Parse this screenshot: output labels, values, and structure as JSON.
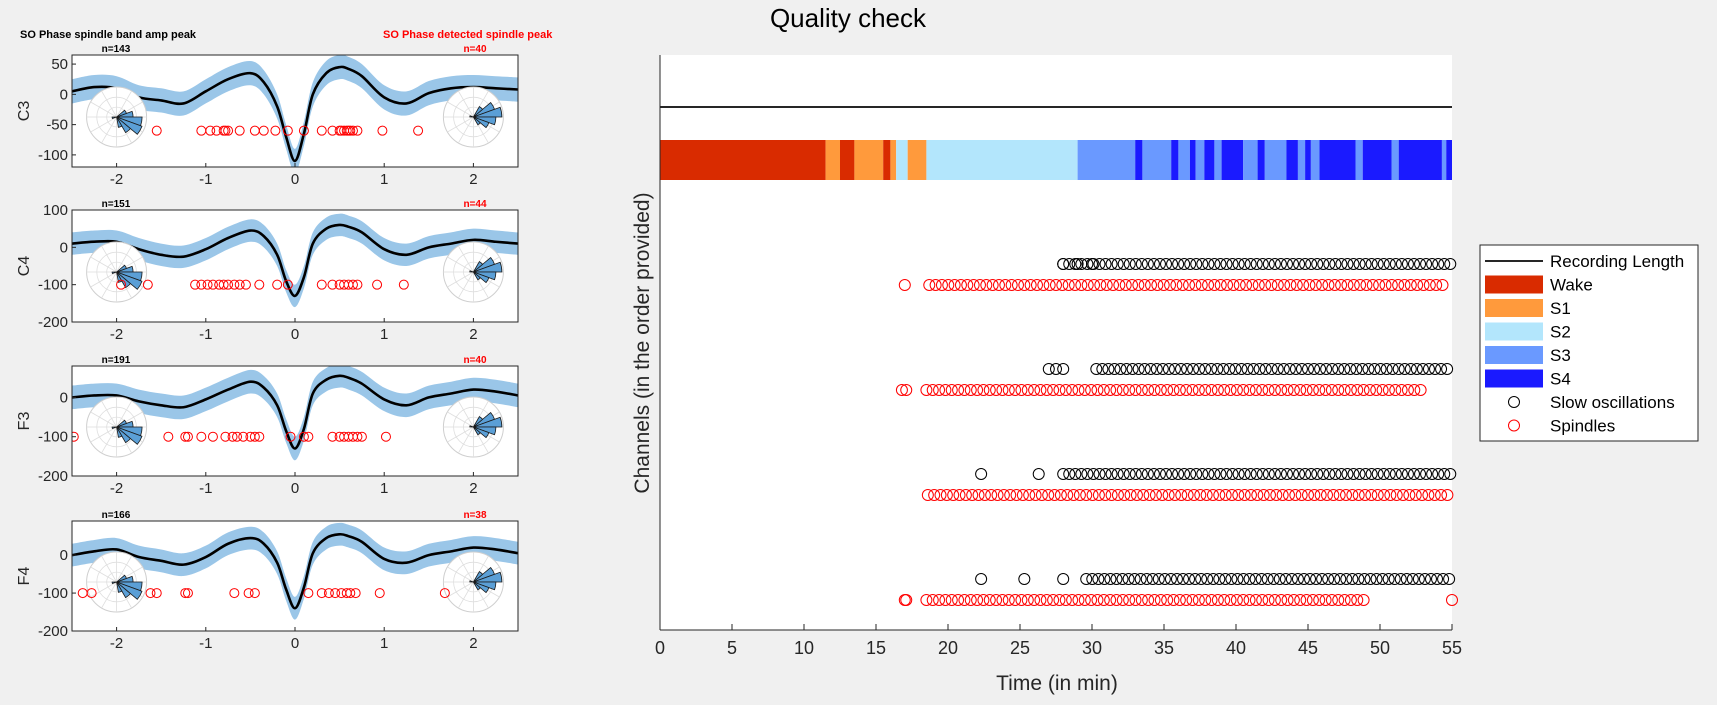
{
  "left_headers": {
    "spindle_band": "SO Phase spindle band amp peak",
    "detected_spindle": "SO Phase detected spindle peak"
  },
  "colors": {
    "band": "#9ac6e8",
    "mean_line": "#000000",
    "spindle_marker": "#ff0000",
    "so_marker": "#000000",
    "rose_fill": "#5b9fd6"
  },
  "chart_data": [
    {
      "type": "line",
      "title": "",
      "ylabel": "C3",
      "n_left": "n=143",
      "n_right": "n=40",
      "xlim": [
        -2.5,
        2.5
      ],
      "ylim": [
        -120,
        65
      ],
      "yticks": [
        50,
        0,
        -50,
        -100
      ],
      "xticks": [
        -2,
        -1,
        0,
        1,
        2
      ],
      "x": [
        -2.5,
        -2.25,
        -2,
        -1.75,
        -1.5,
        -1.25,
        -1,
        -0.75,
        -0.5,
        -0.35,
        -0.2,
        -0.1,
        0,
        0.1,
        0.2,
        0.35,
        0.5,
        0.6,
        0.75,
        1,
        1.25,
        1.5,
        1.75,
        2,
        2.25,
        2.5
      ],
      "mean": [
        5,
        12,
        10,
        -5,
        -10,
        -15,
        5,
        25,
        35,
        20,
        -20,
        -70,
        -110,
        -65,
        0,
        35,
        45,
        42,
        30,
        -5,
        -15,
        2,
        10,
        12,
        10,
        8
      ],
      "band_half_width": 20,
      "spindle_dots_x": [
        -1.55,
        -1.05,
        -0.95,
        -0.88,
        -0.8,
        -0.78,
        -0.75,
        -0.62,
        -0.45,
        -0.35,
        -0.22,
        -0.08,
        0.1,
        0.3,
        0.42,
        0.5,
        0.52,
        0.55,
        0.58,
        0.6,
        0.62,
        0.65,
        0.7,
        0.98,
        1.38
      ],
      "spindle_dots_y": -60
    },
    {
      "type": "line",
      "title": "",
      "ylabel": "C4",
      "n_left": "n=151",
      "n_right": "n=44",
      "xlim": [
        -2.5,
        2.5
      ],
      "ylim": [
        -200,
        100
      ],
      "yticks": [
        100,
        0,
        -100,
        -200
      ],
      "xticks": [
        -2,
        -1,
        0,
        1,
        2
      ],
      "x": [
        -2.5,
        -2.25,
        -2,
        -1.75,
        -1.5,
        -1.25,
        -1,
        -0.75,
        -0.5,
        -0.35,
        -0.2,
        -0.1,
        0,
        0.1,
        0.2,
        0.35,
        0.5,
        0.6,
        0.75,
        1,
        1.25,
        1.5,
        1.75,
        2,
        2.25,
        2.5
      ],
      "mean": [
        10,
        15,
        15,
        -5,
        -20,
        -25,
        -5,
        25,
        45,
        30,
        -20,
        -90,
        -130,
        -80,
        10,
        50,
        60,
        55,
        40,
        -5,
        -20,
        0,
        10,
        20,
        15,
        10
      ],
      "band_half_width": 30,
      "spindle_dots_x": [
        -1.95,
        -1.65,
        -1.12,
        -1.05,
        -0.98,
        -0.92,
        -0.85,
        -0.8,
        -0.75,
        -0.68,
        -0.62,
        -0.55,
        -0.4,
        -0.2,
        -0.08,
        0.3,
        0.42,
        0.5,
        0.55,
        0.6,
        0.65,
        0.7,
        0.92,
        1.22
      ],
      "spindle_dots_y": -100
    },
    {
      "type": "line",
      "title": "",
      "ylabel": "F3",
      "n_left": "n=191",
      "n_right": "n=40",
      "xlim": [
        -2.5,
        2.5
      ],
      "ylim": [
        -200,
        80
      ],
      "yticks": [
        0,
        -100,
        -200
      ],
      "xticks": [
        -2,
        -1,
        0,
        1,
        2
      ],
      "x": [
        -2.5,
        -2.25,
        -2,
        -1.75,
        -1.5,
        -1.25,
        -1,
        -0.75,
        -0.5,
        -0.35,
        -0.2,
        -0.1,
        0,
        0.1,
        0.2,
        0.35,
        0.5,
        0.6,
        0.75,
        1,
        1.25,
        1.5,
        1.75,
        2,
        2.25,
        2.5
      ],
      "mean": [
        0,
        5,
        5,
        -10,
        -20,
        -25,
        -5,
        20,
        40,
        25,
        -20,
        -85,
        -130,
        -80,
        10,
        45,
        55,
        50,
        35,
        -5,
        -20,
        0,
        10,
        20,
        15,
        5
      ],
      "band_half_width": 30,
      "spindle_dots_x": [
        -2.48,
        -1.42,
        -1.23,
        -1.2,
        -1.05,
        -0.92,
        -0.78,
        -0.7,
        -0.65,
        -0.58,
        -0.5,
        -0.45,
        -0.4,
        -0.05,
        0.1,
        0.15,
        0.42,
        0.5,
        0.55,
        0.6,
        0.65,
        0.7,
        0.75,
        1.02
      ],
      "spindle_dots_y": -100
    },
    {
      "type": "line",
      "title": "",
      "ylabel": "F4",
      "n_left": "n=166",
      "n_right": "n=38",
      "xlim": [
        -2.5,
        2.5
      ],
      "ylim": [
        -200,
        90
      ],
      "yticks": [
        0,
        -100,
        -200
      ],
      "xticks": [
        -2,
        -1,
        0,
        1,
        2
      ],
      "x": [
        -2.5,
        -2.25,
        -2,
        -1.75,
        -1.5,
        -1.25,
        -1,
        -0.75,
        -0.5,
        -0.35,
        -0.2,
        -0.1,
        0,
        0.1,
        0.2,
        0.35,
        0.5,
        0.6,
        0.75,
        1,
        1.25,
        1.5,
        1.75,
        2,
        2.25,
        2.5
      ],
      "mean": [
        0,
        10,
        15,
        -5,
        -15,
        -25,
        -5,
        30,
        45,
        30,
        -20,
        -90,
        -140,
        -85,
        5,
        45,
        55,
        50,
        35,
        -10,
        -20,
        0,
        10,
        20,
        15,
        5
      ],
      "band_half_width": 30,
      "spindle_dots_x": [
        -2.38,
        -2.28,
        -1.62,
        -1.55,
        -1.23,
        -1.2,
        -0.68,
        -0.52,
        -0.45,
        0.15,
        0.3,
        0.38,
        0.45,
        0.52,
        0.58,
        0.62,
        0.68,
        0.95,
        1.68
      ],
      "spindle_dots_y": -100
    },
    {
      "type": "scatter",
      "title": "Quality check",
      "xlabel": "Time (in min)",
      "ylabel": "Channels (in the order provided)",
      "xlim": [
        0,
        55
      ],
      "xticks": [
        0,
        5,
        10,
        15,
        20,
        25,
        30,
        35,
        40,
        45,
        50,
        55
      ],
      "legend_position": "outside-right",
      "series": [
        {
          "name": "Recording Length"
        },
        {
          "name": "Wake",
          "color": "#d92b00"
        },
        {
          "name": "S1",
          "color": "#ff9a3c"
        },
        {
          "name": "S2",
          "color": "#b3e6fc"
        },
        {
          "name": "S3",
          "color": "#6a99ff"
        },
        {
          "name": "S4",
          "color": "#1a1aff"
        },
        {
          "name": "Slow oscillations"
        },
        {
          "name": "Spindles"
        }
      ],
      "recording_length": [
        0,
        55
      ],
      "stages": [
        {
          "s": "Wake",
          "a": 0,
          "b": 11.5
        },
        {
          "s": "S1",
          "a": 11.5,
          "b": 12.5
        },
        {
          "s": "Wake",
          "a": 12.5,
          "b": 13.5
        },
        {
          "s": "S1",
          "a": 13.5,
          "b": 15.5
        },
        {
          "s": "Wake",
          "a": 15.5,
          "b": 16
        },
        {
          "s": "S1",
          "a": 16,
          "b": 16.4
        },
        {
          "s": "S2",
          "a": 16.4,
          "b": 17.2
        },
        {
          "s": "S1",
          "a": 17.2,
          "b": 18.5
        },
        {
          "s": "S2",
          "a": 18.5,
          "b": 29
        },
        {
          "s": "S3",
          "a": 29,
          "b": 33
        },
        {
          "s": "S4",
          "a": 33,
          "b": 33.5
        },
        {
          "s": "S3",
          "a": 33.5,
          "b": 35.5
        },
        {
          "s": "S4",
          "a": 35.5,
          "b": 36
        },
        {
          "s": "S3",
          "a": 36,
          "b": 36.8
        },
        {
          "s": "S4",
          "a": 36.8,
          "b": 37.2
        },
        {
          "s": "S3",
          "a": 37.2,
          "b": 37.8
        },
        {
          "s": "S4",
          "a": 37.8,
          "b": 38.5
        },
        {
          "s": "S3",
          "a": 38.5,
          "b": 39
        },
        {
          "s": "S4",
          "a": 39,
          "b": 40.5
        },
        {
          "s": "S3",
          "a": 40.5,
          "b": 41.5
        },
        {
          "s": "S4",
          "a": 41.5,
          "b": 42
        },
        {
          "s": "S3",
          "a": 42,
          "b": 43.5
        },
        {
          "s": "S4",
          "a": 43.5,
          "b": 44.3
        },
        {
          "s": "S3",
          "a": 44.3,
          "b": 44.8
        },
        {
          "s": "S4",
          "a": 44.8,
          "b": 45.2
        },
        {
          "s": "S3",
          "a": 45.2,
          "b": 45.8
        },
        {
          "s": "S4",
          "a": 45.8,
          "b": 48.3
        },
        {
          "s": "S3",
          "a": 48.3,
          "b": 48.8
        },
        {
          "s": "S4",
          "a": 48.8,
          "b": 50.8
        },
        {
          "s": "S3",
          "a": 50.8,
          "b": 51.3
        },
        {
          "s": "S4",
          "a": 51.3,
          "b": 54.3
        },
        {
          "s": "S3",
          "a": 54.3,
          "b": 54.6
        },
        {
          "s": "S4",
          "a": 54.6,
          "b": 55
        }
      ],
      "channels": [
        {
          "so_range": [
            28,
            55
          ],
          "so_extra": [
            28,
            29,
            30
          ],
          "sp_range": [
            18.7,
            54.5
          ],
          "sp_extra": [
            17
          ]
        },
        {
          "so_range": [
            30.3,
            55
          ],
          "so_extra": [
            27,
            27.5,
            28
          ],
          "sp_range": [
            18.5,
            53
          ],
          "sp_extra": [
            16.8,
            17.1
          ]
        },
        {
          "so_range": [
            28,
            55
          ],
          "so_extra": [
            22.3,
            26.3
          ],
          "sp_range": [
            18.6,
            55
          ],
          "sp_extra": []
        },
        {
          "so_range": [
            29.6,
            55
          ],
          "so_extra": [
            22.3,
            25.3,
            28
          ],
          "sp_range": [
            18.5,
            49
          ],
          "sp_extra": [
            17,
            17.1,
            55
          ]
        }
      ]
    }
  ]
}
